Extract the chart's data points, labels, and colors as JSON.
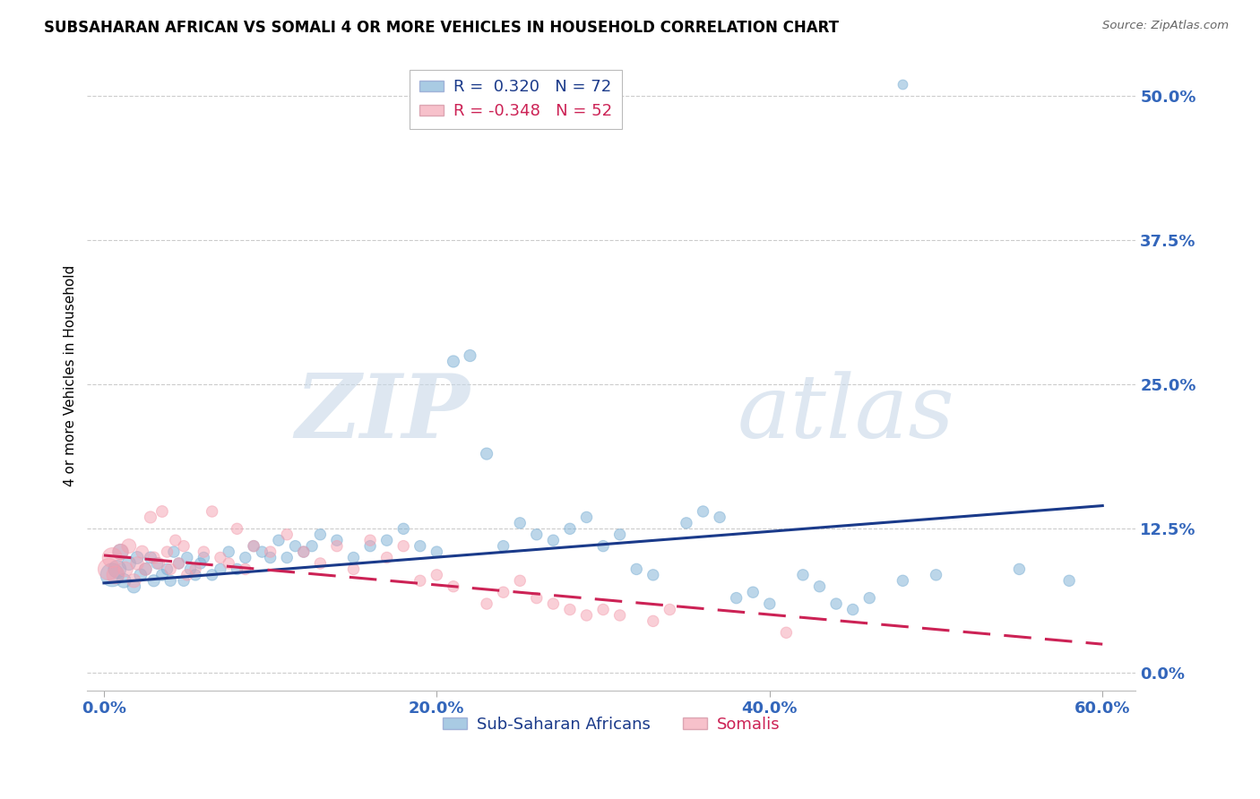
{
  "title": "SUBSAHARAN AFRICAN VS SOMALI 4 OR MORE VEHICLES IN HOUSEHOLD CORRELATION CHART",
  "source": "Source: ZipAtlas.com",
  "ylabel": "4 or more Vehicles in Household",
  "legend_blue_r": "0.320",
  "legend_blue_n": "72",
  "legend_pink_r": "-0.348",
  "legend_pink_n": "52",
  "blue_color": "#7BAFD4",
  "pink_color": "#F4A0B0",
  "blue_line_color": "#1A3A8A",
  "pink_line_color": "#CC2255",
  "watermark_zip": "ZIP",
  "watermark_atlas": "atlas",
  "blue_scatter_x": [
    0.5,
    0.8,
    1.0,
    1.2,
    1.5,
    1.8,
    2.0,
    2.2,
    2.5,
    2.8,
    3.0,
    3.2,
    3.5,
    3.8,
    4.0,
    4.2,
    4.5,
    4.8,
    5.0,
    5.2,
    5.5,
    5.8,
    6.0,
    6.5,
    7.0,
    7.5,
    8.0,
    8.5,
    9.0,
    9.5,
    10.0,
    10.5,
    11.0,
    11.5,
    12.0,
    12.5,
    13.0,
    14.0,
    15.0,
    16.0,
    17.0,
    18.0,
    19.0,
    20.0,
    21.0,
    22.0,
    23.0,
    24.0,
    25.0,
    26.0,
    27.0,
    28.0,
    29.0,
    30.0,
    31.0,
    32.0,
    33.0,
    35.0,
    36.0,
    37.0,
    38.0,
    39.0,
    40.0,
    42.0,
    43.0,
    44.0,
    45.0,
    46.0,
    48.0,
    50.0,
    55.0,
    58.0
  ],
  "blue_scatter_y": [
    8.5,
    9.0,
    10.5,
    8.0,
    9.5,
    7.5,
    10.0,
    8.5,
    9.0,
    10.0,
    8.0,
    9.5,
    8.5,
    9.0,
    8.0,
    10.5,
    9.5,
    8.0,
    10.0,
    9.0,
    8.5,
    9.5,
    10.0,
    8.5,
    9.0,
    10.5,
    9.0,
    10.0,
    11.0,
    10.5,
    10.0,
    11.5,
    10.0,
    11.0,
    10.5,
    11.0,
    12.0,
    11.5,
    10.0,
    11.0,
    11.5,
    12.5,
    11.0,
    10.5,
    27.0,
    27.5,
    19.0,
    11.0,
    13.0,
    12.0,
    11.5,
    12.5,
    13.5,
    11.0,
    12.0,
    9.0,
    8.5,
    13.0,
    14.0,
    13.5,
    6.5,
    7.0,
    6.0,
    8.5,
    7.5,
    6.0,
    5.5,
    6.5,
    8.0,
    8.5,
    9.0,
    8.0
  ],
  "blue_scatter_size": [
    350,
    200,
    150,
    130,
    120,
    110,
    100,
    100,
    95,
    90,
    90,
    85,
    85,
    80,
    80,
    80,
    80,
    80,
    80,
    80,
    80,
    80,
    80,
    80,
    80,
    80,
    80,
    80,
    80,
    80,
    80,
    80,
    80,
    80,
    80,
    80,
    80,
    80,
    80,
    80,
    80,
    80,
    80,
    80,
    90,
    90,
    90,
    80,
    80,
    80,
    80,
    80,
    80,
    80,
    80,
    80,
    80,
    80,
    80,
    80,
    80,
    80,
    80,
    80,
    80,
    80,
    80,
    80,
    80,
    80,
    80,
    80
  ],
  "blue_outlier_x": [
    48.0
  ],
  "blue_outlier_y": [
    51.0
  ],
  "blue_outlier_size": [
    60
  ],
  "pink_scatter_x": [
    0.3,
    0.5,
    0.7,
    1.0,
    1.3,
    1.5,
    1.8,
    2.0,
    2.3,
    2.5,
    2.8,
    3.0,
    3.3,
    3.5,
    3.8,
    4.0,
    4.3,
    4.5,
    4.8,
    5.0,
    5.5,
    6.0,
    6.5,
    7.0,
    7.5,
    8.0,
    8.5,
    9.0,
    10.0,
    11.0,
    12.0,
    13.0,
    14.0,
    15.0,
    16.0,
    17.0,
    18.0,
    19.0,
    20.0,
    21.0,
    23.0,
    24.0,
    25.0,
    26.0,
    27.0,
    28.0,
    29.0,
    30.0,
    31.0,
    33.0,
    34.0,
    41.0
  ],
  "pink_scatter_y": [
    9.0,
    10.0,
    8.5,
    10.5,
    9.0,
    11.0,
    8.0,
    9.5,
    10.5,
    9.0,
    13.5,
    10.0,
    9.5,
    14.0,
    10.5,
    9.0,
    11.5,
    9.5,
    11.0,
    8.5,
    9.0,
    10.5,
    14.0,
    10.0,
    9.5,
    12.5,
    9.0,
    11.0,
    10.5,
    12.0,
    10.5,
    9.5,
    11.0,
    9.0,
    11.5,
    10.0,
    11.0,
    8.0,
    8.5,
    7.5,
    6.0,
    7.0,
    8.0,
    6.5,
    6.0,
    5.5,
    5.0,
    5.5,
    5.0,
    4.5,
    5.5,
    3.5
  ],
  "pink_scatter_size": [
    300,
    250,
    200,
    160,
    140,
    130,
    120,
    110,
    100,
    100,
    90,
    90,
    85,
    85,
    80,
    80,
    80,
    80,
    80,
    80,
    80,
    80,
    80,
    80,
    80,
    80,
    80,
    80,
    80,
    80,
    80,
    80,
    80,
    80,
    80,
    80,
    80,
    80,
    80,
    80,
    80,
    80,
    80,
    80,
    80,
    80,
    80,
    80,
    80,
    80,
    80,
    80
  ],
  "blue_line_x0": 0,
  "blue_line_y0": 7.8,
  "blue_line_x1": 60,
  "blue_line_y1": 14.5,
  "pink_line_x0": 0,
  "pink_line_y0": 10.2,
  "pink_line_x1": 60,
  "pink_line_y1": 2.5,
  "xlim": [
    -1,
    62
  ],
  "ylim": [
    -1.5,
    53
  ],
  "xtick_values": [
    0,
    20,
    40,
    60
  ],
  "ytick_values": [
    0,
    12.5,
    25,
    37.5,
    50
  ],
  "tick_color": "#3366BB",
  "grid_color": "#CCCCCC",
  "background_color": "#FFFFFF"
}
